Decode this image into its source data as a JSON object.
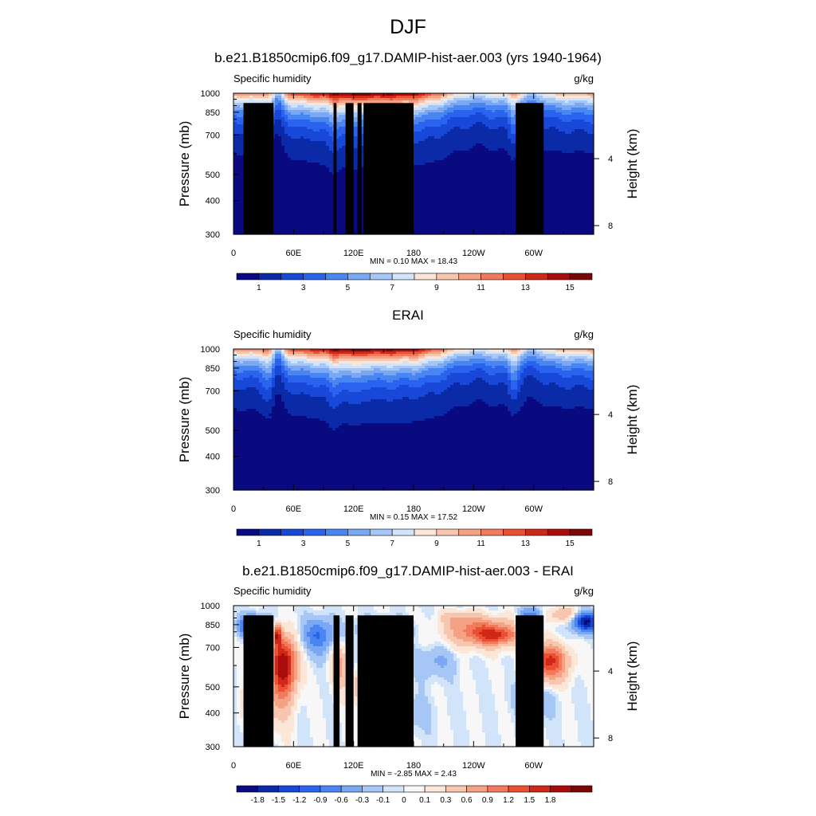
{
  "page": {
    "title": "DJF"
  },
  "colors": {
    "abs_scale": [
      "#0a0a80",
      "#0a2aa8",
      "#1848d8",
      "#2a64ee",
      "#4a86f2",
      "#7aa8f4",
      "#a6c6f6",
      "#d2e4fa",
      "#fbe6d8",
      "#f8c6ae",
      "#f4a184",
      "#f27a5c",
      "#ec5032",
      "#d02818",
      "#a80c0c",
      "#7a0606"
    ],
    "diff_scale": [
      "#0a0a80",
      "#0a2aa8",
      "#1848d8",
      "#2a64ee",
      "#4a86f2",
      "#7aa8f4",
      "#a6c6f6",
      "#d2e4fa",
      "#f7f7f7",
      "#fbe6d8",
      "#f8c6ae",
      "#f4a184",
      "#f27a5c",
      "#ec5032",
      "#d02818",
      "#a80c0c",
      "#7a0606"
    ],
    "land": "#000000"
  },
  "chart_data": [
    {
      "type": "heatmap",
      "title": "b.e21.B1850cmip6.f09_g17.DAMIP-hist-aer.003 (yrs 1940-1964)",
      "left_label": "Specific humidity",
      "units": "g/kg",
      "xlabel": "",
      "ylabel": "Pressure (mb)",
      "y2label": "Height (km)",
      "x_ticks": [
        "0",
        "60E",
        "120E",
        "180",
        "120W",
        "60W"
      ],
      "x_tick_values": [
        0,
        60,
        120,
        180,
        240,
        300
      ],
      "xlim": [
        0,
        360
      ],
      "y_ticks": [
        300,
        400,
        500,
        700,
        850,
        1000
      ],
      "ylim": [
        300,
        1000
      ],
      "y2_ticks": [
        8,
        4
      ],
      "stats": "MIN =   0.10  MAX =  18.43",
      "colorbar_labels": [
        "1",
        "3",
        "5",
        "7",
        "9",
        "11",
        "13",
        "15"
      ],
      "colorbar_levels": [
        1,
        2,
        3,
        4,
        5,
        6,
        7,
        8,
        9,
        10,
        11,
        12,
        13,
        14,
        15
      ],
      "land_mask": [
        [
          10,
          40,
          920
        ],
        [
          28,
          36,
          850
        ],
        [
          100,
          103,
          920
        ],
        [
          112,
          120,
          920
        ],
        [
          124,
          128,
          920
        ],
        [
          130,
          180,
          920
        ],
        [
          282,
          310,
          920
        ]
      ]
    },
    {
      "type": "heatmap",
      "title": "ERAI",
      "left_label": "Specific humidity",
      "units": "g/kg",
      "xlabel": "",
      "ylabel": "Pressure (mb)",
      "y2label": "Height (km)",
      "x_ticks": [
        "0",
        "60E",
        "120E",
        "180",
        "120W",
        "60W"
      ],
      "x_tick_values": [
        0,
        60,
        120,
        180,
        240,
        300
      ],
      "xlim": [
        0,
        360
      ],
      "y_ticks": [
        300,
        400,
        500,
        700,
        850,
        1000
      ],
      "ylim": [
        300,
        1000
      ],
      "y2_ticks": [
        8,
        4
      ],
      "stats": "MIN =   0.15  MAX =  17.52",
      "colorbar_labels": [
        "1",
        "3",
        "5",
        "7",
        "9",
        "11",
        "13",
        "15"
      ],
      "colorbar_levels": [
        1,
        2,
        3,
        4,
        5,
        6,
        7,
        8,
        9,
        10,
        11,
        12,
        13,
        14,
        15
      ],
      "land_mask": []
    },
    {
      "type": "heatmap",
      "title": "b.e21.B1850cmip6.f09_g17.DAMIP-hist-aer.003 - ERAI",
      "left_label": "Specific humidity",
      "units": "g/kg",
      "xlabel": "",
      "ylabel": "Pressure (mb)",
      "y2label": "Height (km)",
      "x_ticks": [
        "0",
        "60E",
        "120E",
        "180",
        "120W",
        "60W"
      ],
      "x_tick_values": [
        0,
        60,
        120,
        180,
        240,
        300
      ],
      "xlim": [
        0,
        360
      ],
      "y_ticks": [
        300,
        400,
        500,
        700,
        850,
        1000
      ],
      "ylim": [
        300,
        1000
      ],
      "y2_ticks": [
        8,
        4
      ],
      "stats": "MIN =  -2.85  MAX =   2.43",
      "colorbar_labels": [
        "-1.8",
        "-1.5",
        "-1.2",
        "-0.9",
        "-0.6",
        "-0.3",
        "-0.1",
        "0",
        "0.1",
        "0.3",
        "0.6",
        "0.9",
        "1.2",
        "1.5",
        "1.8"
      ],
      "colorbar_levels": [
        -1.8,
        -1.5,
        -1.2,
        -0.9,
        -0.6,
        -0.3,
        -0.1,
        0,
        0.1,
        0.3,
        0.6,
        0.9,
        1.2,
        1.5,
        1.8
      ],
      "land_mask": [
        [
          10,
          40,
          920
        ],
        [
          28,
          36,
          850
        ],
        [
          100,
          106,
          920
        ],
        [
          112,
          120,
          920
        ],
        [
          124,
          180,
          920
        ],
        [
          282,
          310,
          920
        ]
      ]
    }
  ]
}
